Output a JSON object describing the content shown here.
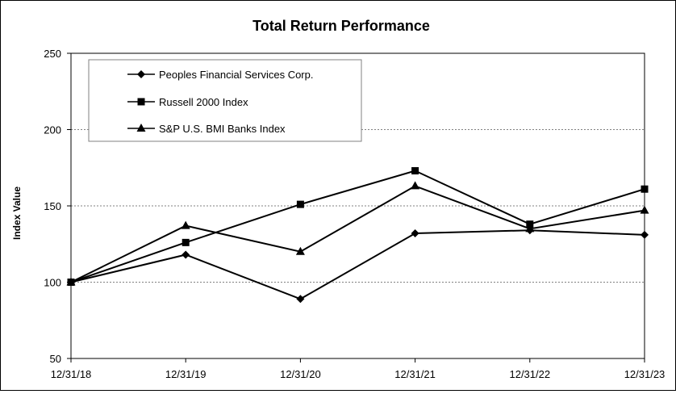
{
  "chart_data": {
    "type": "line",
    "title": "Total Return Performance",
    "xlabel": "",
    "ylabel": "Index Value",
    "categories": [
      "12/31/18",
      "12/31/19",
      "12/31/20",
      "12/31/21",
      "12/31/22",
      "12/31/23"
    ],
    "yticks": [
      "50",
      "100",
      "150",
      "200",
      "250"
    ],
    "ylim": [
      50,
      250
    ],
    "grid": "horizontal dashed",
    "legend_position": "top-left",
    "series": [
      {
        "name": "Peoples Financial Services Corp.",
        "marker": "diamond",
        "values": [
          100,
          118,
          89,
          132,
          134,
          131
        ]
      },
      {
        "name": "Russell 2000 Index",
        "marker": "square",
        "values": [
          100,
          126,
          151,
          173,
          138,
          161
        ]
      },
      {
        "name": "S&P U.S. BMI Banks Index",
        "marker": "triangle",
        "values": [
          100,
          137,
          120,
          163,
          135,
          147
        ]
      }
    ],
    "colors": {
      "line": "#000000",
      "grid": "#808080",
      "background": "#ffffff"
    }
  }
}
